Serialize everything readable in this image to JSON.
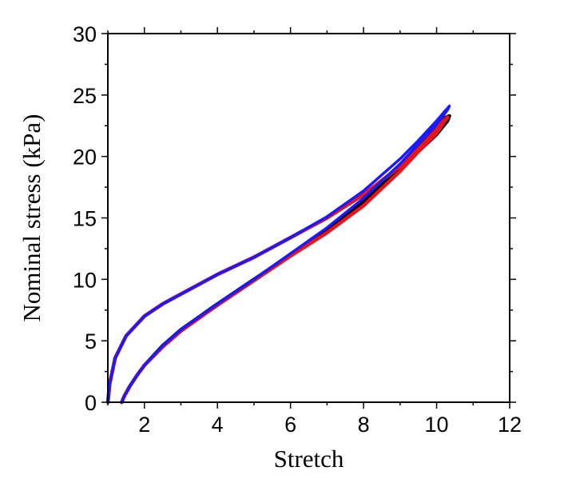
{
  "chart_data": {
    "type": "line",
    "xlabel": "Stretch",
    "ylabel": "Nominal stress (kPa)",
    "xlim": [
      1,
      12
    ],
    "ylim": [
      0,
      30
    ],
    "x_ticks": [
      2,
      4,
      6,
      8,
      10,
      12
    ],
    "y_ticks": [
      0,
      5,
      10,
      15,
      20,
      25,
      30
    ],
    "x_tick_labels": [
      "2",
      "4",
      "6",
      "8",
      "10",
      "12"
    ],
    "y_tick_labels": [
      "0",
      "5",
      "10",
      "15",
      "20",
      "25",
      "30"
    ],
    "grid": false,
    "legend": "none",
    "series": [
      {
        "color": "#000000",
        "x": [
          1.0,
          1.05,
          1.2,
          1.5,
          2.0,
          2.5,
          3.0,
          3.5,
          4.0,
          5.0,
          6.0,
          7.0,
          8.0,
          9.0,
          9.5,
          10.0,
          10.3,
          10.35,
          10.2,
          10.0,
          9.5,
          9.0,
          8.0,
          7.0,
          6.0,
          5.0,
          4.0,
          3.0,
          2.5,
          2.0,
          1.8,
          1.6,
          1.45,
          1.38
        ],
        "y": [
          0.0,
          1.5,
          3.6,
          5.4,
          7.0,
          8.0,
          8.8,
          9.6,
          10.4,
          11.8,
          13.4,
          15.0,
          16.9,
          19.1,
          20.4,
          21.8,
          22.9,
          23.3,
          23.1,
          22.3,
          20.7,
          19.1,
          16.3,
          14.0,
          12.0,
          10.0,
          8.0,
          5.9,
          4.6,
          3.0,
          2.2,
          1.3,
          0.5,
          0.0
        ]
      },
      {
        "color": "#e8141c",
        "x": [
          1.0,
          1.05,
          1.2,
          1.5,
          2.0,
          2.5,
          3.0,
          3.5,
          4.0,
          5.0,
          6.0,
          7.0,
          8.0,
          9.0,
          9.5,
          10.0,
          10.15,
          10.3,
          10.2,
          10.0,
          9.5,
          9.0,
          8.0,
          7.0,
          6.0,
          5.0,
          4.0,
          3.0,
          2.5,
          2.0,
          1.8,
          1.6,
          1.45,
          1.38
        ],
        "y": [
          0.0,
          1.5,
          3.6,
          5.4,
          7.0,
          8.0,
          8.8,
          9.6,
          10.4,
          11.8,
          13.4,
          15.0,
          16.9,
          19.2,
          20.6,
          22.2,
          22.8,
          23.2,
          22.8,
          21.9,
          20.4,
          18.8,
          16.0,
          13.8,
          11.9,
          9.9,
          7.9,
          5.8,
          4.5,
          3.0,
          2.2,
          1.3,
          0.5,
          0.0
        ]
      },
      {
        "color": "#1a1aff",
        "x": [
          1.0,
          1.05,
          1.2,
          1.5,
          2.0,
          2.5,
          3.0,
          3.5,
          4.0,
          5.0,
          6.0,
          7.0,
          8.0,
          9.0,
          9.5,
          10.0,
          10.2,
          10.35,
          10.3,
          10.0,
          9.5,
          9.0,
          8.0,
          7.0,
          6.0,
          5.0,
          4.0,
          3.0,
          2.5,
          2.0,
          1.8,
          1.6,
          1.45,
          1.38
        ],
        "y": [
          0.0,
          1.5,
          3.6,
          5.4,
          7.0,
          8.0,
          8.8,
          9.6,
          10.4,
          11.8,
          13.4,
          15.1,
          17.2,
          19.8,
          21.3,
          22.9,
          23.6,
          24.1,
          23.8,
          22.6,
          21.0,
          19.4,
          16.6,
          14.2,
          12.1,
          10.0,
          8.0,
          5.9,
          4.6,
          3.0,
          2.2,
          1.3,
          0.5,
          0.0
        ]
      }
    ]
  }
}
